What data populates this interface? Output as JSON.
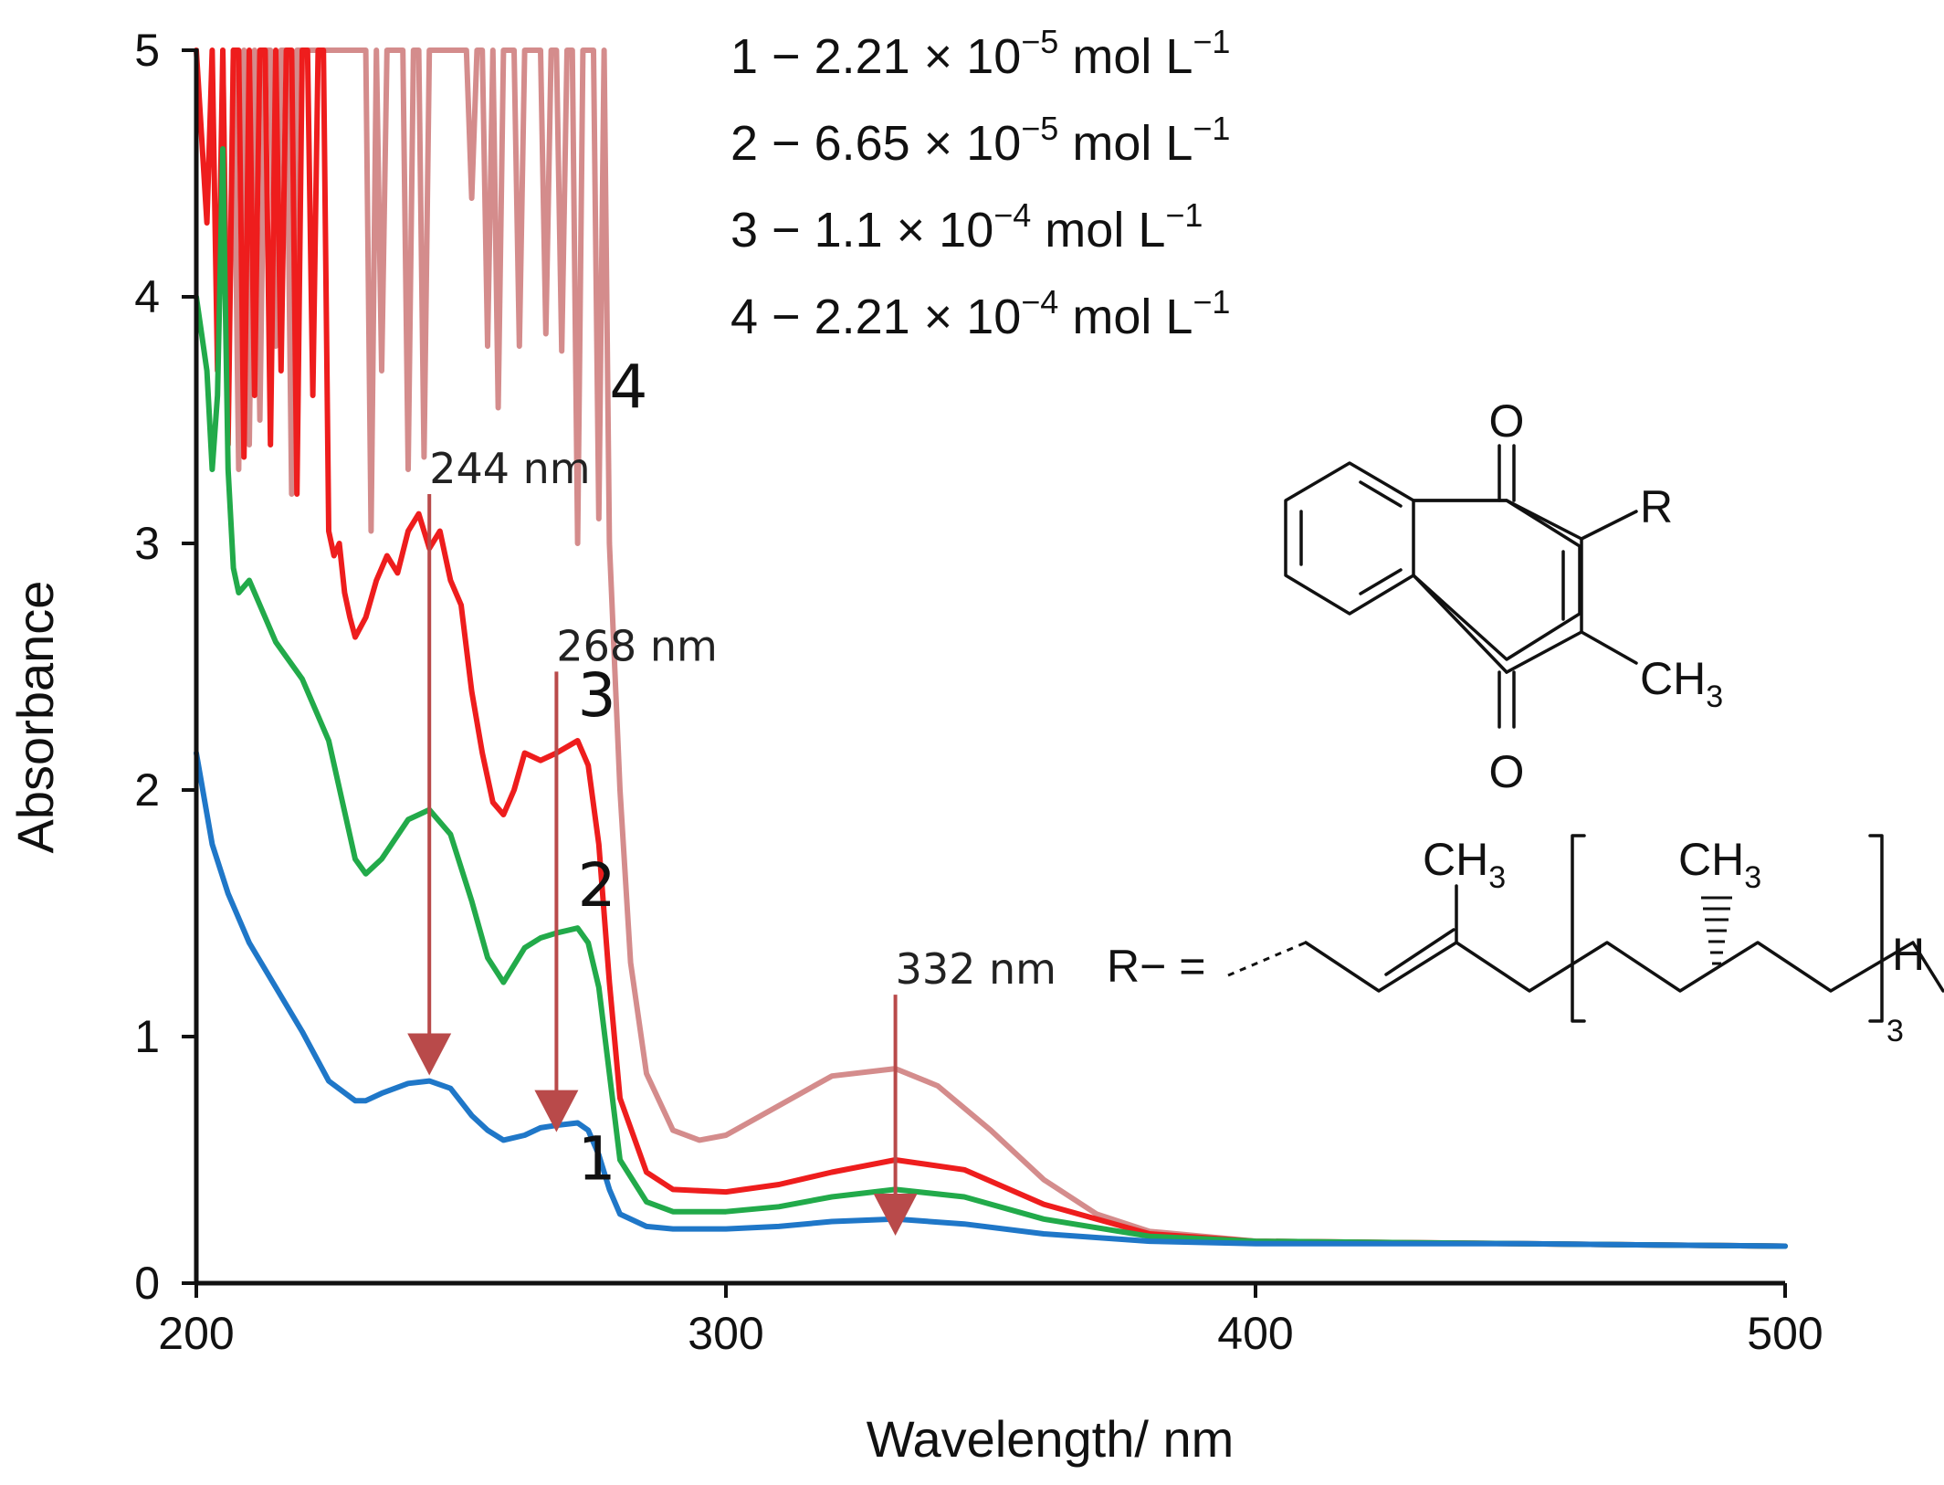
{
  "chart_data": {
    "type": "line",
    "title": "",
    "xlabel": "Wavelength/ nm",
    "ylabel": "Absorbance",
    "xlim": [
      200,
      500
    ],
    "ylim": [
      0,
      5
    ],
    "xticks": [
      "200",
      "300",
      "400",
      "500"
    ],
    "yticks": [
      "0",
      "1",
      "2",
      "3",
      "4",
      "5"
    ],
    "grid": false,
    "legend": {
      "placement": "top-right",
      "entries": [
        {
          "id": "1",
          "label": "1 − 2.21 × 10",
          "exp": "−5",
          "unit": " mol L",
          "uexp": "−1"
        },
        {
          "id": "2",
          "label": "2 − 6.65 × 10",
          "exp": "−5",
          "unit": " mol L",
          "uexp": "−1"
        },
        {
          "id": "3",
          "label": "3 − 1.1 × 10",
          "exp": "−4",
          "unit": " mol L",
          "uexp": "−1"
        },
        {
          "id": "4",
          "label": "4 − 2.21 × 10",
          "exp": "−4",
          "unit": " mol L",
          "uexp": "−1"
        }
      ]
    },
    "series": [
      {
        "name": "1",
        "label": "1",
        "color": "#1f77c8",
        "label_at": [
          272,
          0.42
        ],
        "x": [
          200,
          203,
          206,
          210,
          215,
          220,
          225,
          230,
          232,
          235,
          240,
          244,
          248,
          252,
          255,
          258,
          262,
          265,
          268,
          272,
          274,
          276,
          278,
          280,
          285,
          290,
          300,
          310,
          320,
          332,
          345,
          360,
          380,
          400,
          450,
          500
        ],
        "y": [
          2.15,
          1.78,
          1.58,
          1.38,
          1.2,
          1.02,
          0.82,
          0.74,
          0.74,
          0.77,
          0.81,
          0.82,
          0.79,
          0.68,
          0.62,
          0.58,
          0.6,
          0.63,
          0.64,
          0.65,
          0.62,
          0.52,
          0.38,
          0.28,
          0.23,
          0.22,
          0.22,
          0.23,
          0.25,
          0.26,
          0.24,
          0.2,
          0.17,
          0.16,
          0.16,
          0.15
        ]
      },
      {
        "name": "2",
        "label": "2",
        "color": "#22aa4a",
        "label_at": [
          272,
          1.53
        ],
        "x": [
          200,
          202,
          203,
          204,
          205,
          206,
          207,
          208,
          210,
          212,
          215,
          220,
          225,
          230,
          232,
          235,
          240,
          244,
          248,
          252,
          255,
          258,
          262,
          265,
          268,
          272,
          274,
          276,
          278,
          280,
          285,
          290,
          300,
          310,
          320,
          332,
          345,
          360,
          380,
          400,
          450,
          500
        ],
        "y": [
          4.0,
          3.7,
          3.3,
          3.6,
          4.6,
          3.3,
          2.9,
          2.8,
          2.85,
          2.75,
          2.6,
          2.45,
          2.2,
          1.72,
          1.66,
          1.72,
          1.88,
          1.92,
          1.82,
          1.55,
          1.32,
          1.22,
          1.36,
          1.4,
          1.42,
          1.44,
          1.38,
          1.2,
          0.85,
          0.5,
          0.33,
          0.29,
          0.29,
          0.31,
          0.35,
          0.38,
          0.35,
          0.26,
          0.19,
          0.17,
          0.16,
          0.15
        ]
      },
      {
        "name": "3",
        "label": "3",
        "color": "#ee1d1d",
        "label_at": [
          272,
          2.3
        ],
        "x": [
          200,
          202,
          203,
          204,
          205,
          206,
          207,
          208,
          209,
          210,
          211,
          212,
          213,
          214,
          215,
          216,
          217,
          218,
          219,
          220,
          221,
          222,
          223,
          224,
          225,
          226,
          227,
          228,
          229,
          230,
          232,
          234,
          236,
          238,
          240,
          242,
          244,
          246,
          248,
          250,
          252,
          254,
          256,
          258,
          260,
          262,
          265,
          268,
          272,
          274,
          276,
          278,
          280,
          285,
          290,
          300,
          310,
          320,
          332,
          345,
          360,
          380,
          400,
          450,
          500
        ],
        "y": [
          5.0,
          4.3,
          5.0,
          3.7,
          5.0,
          3.4,
          5.0,
          5.0,
          3.35,
          5.0,
          3.6,
          5.0,
          5.0,
          3.4,
          5.0,
          3.7,
          5.0,
          5.0,
          3.2,
          5.0,
          5.0,
          3.6,
          5.0,
          5.0,
          3.05,
          2.95,
          3.0,
          2.8,
          2.7,
          2.62,
          2.7,
          2.85,
          2.95,
          2.88,
          3.05,
          3.12,
          2.98,
          3.05,
          2.85,
          2.75,
          2.4,
          2.15,
          1.95,
          1.9,
          2.0,
          2.15,
          2.12,
          2.15,
          2.2,
          2.1,
          1.78,
          1.22,
          0.75,
          0.45,
          0.38,
          0.37,
          0.4,
          0.45,
          0.5,
          0.46,
          0.32,
          0.2,
          0.17,
          0.16,
          0.15
        ]
      },
      {
        "name": "4",
        "label": "4",
        "color": "#d48c8c",
        "label_at": [
          278,
          3.55
        ],
        "x": [
          205,
          206,
          207,
          208,
          209,
          210,
          211,
          212,
          213,
          214,
          215,
          216,
          217,
          218,
          219,
          220,
          221,
          222,
          223,
          224,
          225,
          226,
          227,
          228,
          229,
          230,
          231,
          232,
          233,
          234,
          235,
          236,
          237,
          238,
          239,
          240,
          241,
          242,
          243,
          244,
          245,
          246,
          247,
          248,
          249,
          250,
          251,
          252,
          253,
          254,
          255,
          256,
          257,
          258,
          259,
          260,
          261,
          262,
          263,
          264,
          265,
          266,
          267,
          268,
          269,
          270,
          271,
          272,
          273,
          274,
          275,
          276,
          277,
          278,
          280,
          282,
          285,
          290,
          295,
          300,
          310,
          320,
          332,
          340,
          350,
          360,
          370,
          380,
          400,
          450,
          500
        ],
        "y": [
          5.0,
          3.5,
          5.0,
          3.3,
          5.0,
          3.4,
          5.0,
          3.5,
          5.0,
          5.0,
          3.8,
          5.0,
          5.0,
          3.2,
          5.0,
          5.0,
          5.0,
          5.0,
          5.0,
          5.0,
          5.0,
          5.0,
          5.0,
          5.0,
          5.0,
          5.0,
          5.0,
          5.0,
          3.05,
          5.0,
          3.7,
          5.0,
          5.0,
          5.0,
          5.0,
          3.3,
          5.0,
          5.0,
          3.35,
          5.0,
          5.0,
          5.0,
          5.0,
          5.0,
          5.0,
          5.0,
          5.0,
          4.4,
          5.0,
          5.0,
          3.8,
          5.0,
          3.55,
          5.0,
          5.0,
          5.0,
          3.8,
          5.0,
          5.0,
          5.0,
          5.0,
          3.85,
          5.0,
          5.0,
          3.78,
          5.0,
          5.0,
          3.0,
          5.0,
          5.0,
          5.0,
          3.1,
          5.0,
          3.0,
          2.0,
          1.3,
          0.85,
          0.62,
          0.58,
          0.6,
          0.72,
          0.84,
          0.87,
          0.8,
          0.62,
          0.42,
          0.28,
          0.21,
          0.17,
          0.16,
          0.15
        ]
      }
    ],
    "annotations": [
      {
        "text": "244 nm",
        "x": 244,
        "label_y": 3.2,
        "from": 3.2,
        "to": 0.85,
        "dx": 0
      },
      {
        "text": "268 nm",
        "x": 268,
        "label_y": 2.48,
        "from": 2.48,
        "to": 0.62,
        "dx": 0
      },
      {
        "text": "332 nm",
        "x": 332,
        "label_y": 1.17,
        "from": 1.17,
        "to": 0.2,
        "dx": 0
      }
    ],
    "arrow_color": "#b94a4a",
    "axis_color": "#111111"
  },
  "structure": {
    "name": "vitamin K1 (phylloquinone)",
    "o_top": "O",
    "o_bottom": "O",
    "r_sub": "R",
    "ch3_ring": "CH",
    "ch3_ring_sub": "3",
    "r_def": "R− =",
    "ch3_chain1": "CH",
    "ch3_chain1_sub": "3",
    "ch3_chain2": "CH",
    "ch3_chain2_sub": "3",
    "h_end": "H",
    "repeat_sub": "3"
  }
}
